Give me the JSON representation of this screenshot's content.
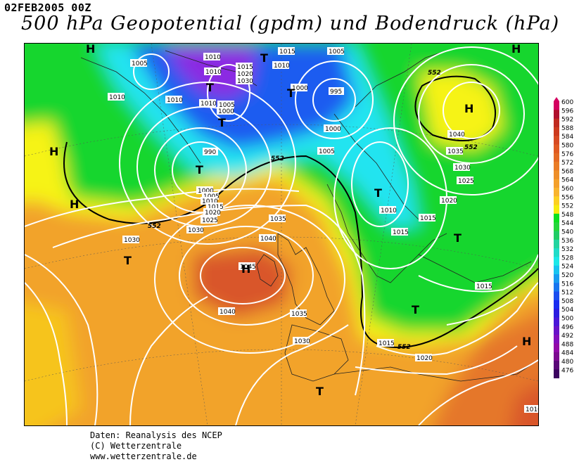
{
  "header": {
    "date": "02FEB2005 00Z",
    "title": "500 hPa Geopotential (gpdm) und Bodendruck (hPa)"
  },
  "map": {
    "highs": [
      "H",
      "H",
      "H",
      "H",
      "H",
      "H"
    ],
    "lows": [
      "T",
      "T",
      "T",
      "T",
      "T",
      "T",
      "T",
      "T",
      "T"
    ],
    "isobar_labels": [
      "1010",
      "1015",
      "1005",
      "995",
      "1000",
      "1010",
      "1015",
      "1005",
      "1010",
      "1010",
      "1000",
      "1005",
      "1030",
      "1020",
      "1005",
      "1000",
      "1010",
      "1010",
      "1015",
      "990",
      "1000",
      "1005",
      "1010",
      "1015",
      "1020",
      "1025",
      "1030",
      "1030",
      "1035",
      "1040",
      "1045",
      "1040",
      "1035",
      "1030",
      "1040",
      "1035",
      "1030",
      "1025",
      "1020",
      "1015",
      "1015",
      "1010",
      "1015",
      "1020",
      "1015",
      "1010"
    ],
    "contour_552_label": "552",
    "colors": {
      "purple": "#8b2be2",
      "blue": "#1e5cf0",
      "cyan": "#21e4f0",
      "green": "#17d62f",
      "yellow": "#f6f315",
      "orange": "#f2a32a",
      "red_orange": "#d9562a"
    }
  },
  "legend": {
    "values": [
      "600",
      "596",
      "592",
      "588",
      "584",
      "580",
      "576",
      "572",
      "568",
      "564",
      "560",
      "556",
      "552",
      "548",
      "544",
      "540",
      "536",
      "532",
      "528",
      "524",
      "520",
      "516",
      "512",
      "508",
      "504",
      "500",
      "496",
      "492",
      "488",
      "484",
      "480",
      "476"
    ],
    "colors": [
      "#d40060",
      "#b0102c",
      "#c02a20",
      "#cc3a1e",
      "#d74a22",
      "#e05a22",
      "#e46a24",
      "#ea7c26",
      "#ee8e28",
      "#f4a02a",
      "#f8b42e",
      "#fcd022",
      "#f6ec10",
      "#0ce020",
      "#24d63a",
      "#20cc64",
      "#22d4a0",
      "#20dcc8",
      "#1ce8e8",
      "#18c4f0",
      "#189cf0",
      "#1876f0",
      "#1a4ef0",
      "#1a2cf0",
      "#2c1ce0",
      "#4a16d8",
      "#6812c8",
      "#820ebc",
      "#920aa8",
      "#7c0a90",
      "#5a0878",
      "#3c0460"
    ]
  },
  "footer": {
    "line1": "Daten: Reanalysis des NCEP",
    "line2": "(C) Wetterzentrale",
    "line3": "www.wetterzentrale.de"
  }
}
